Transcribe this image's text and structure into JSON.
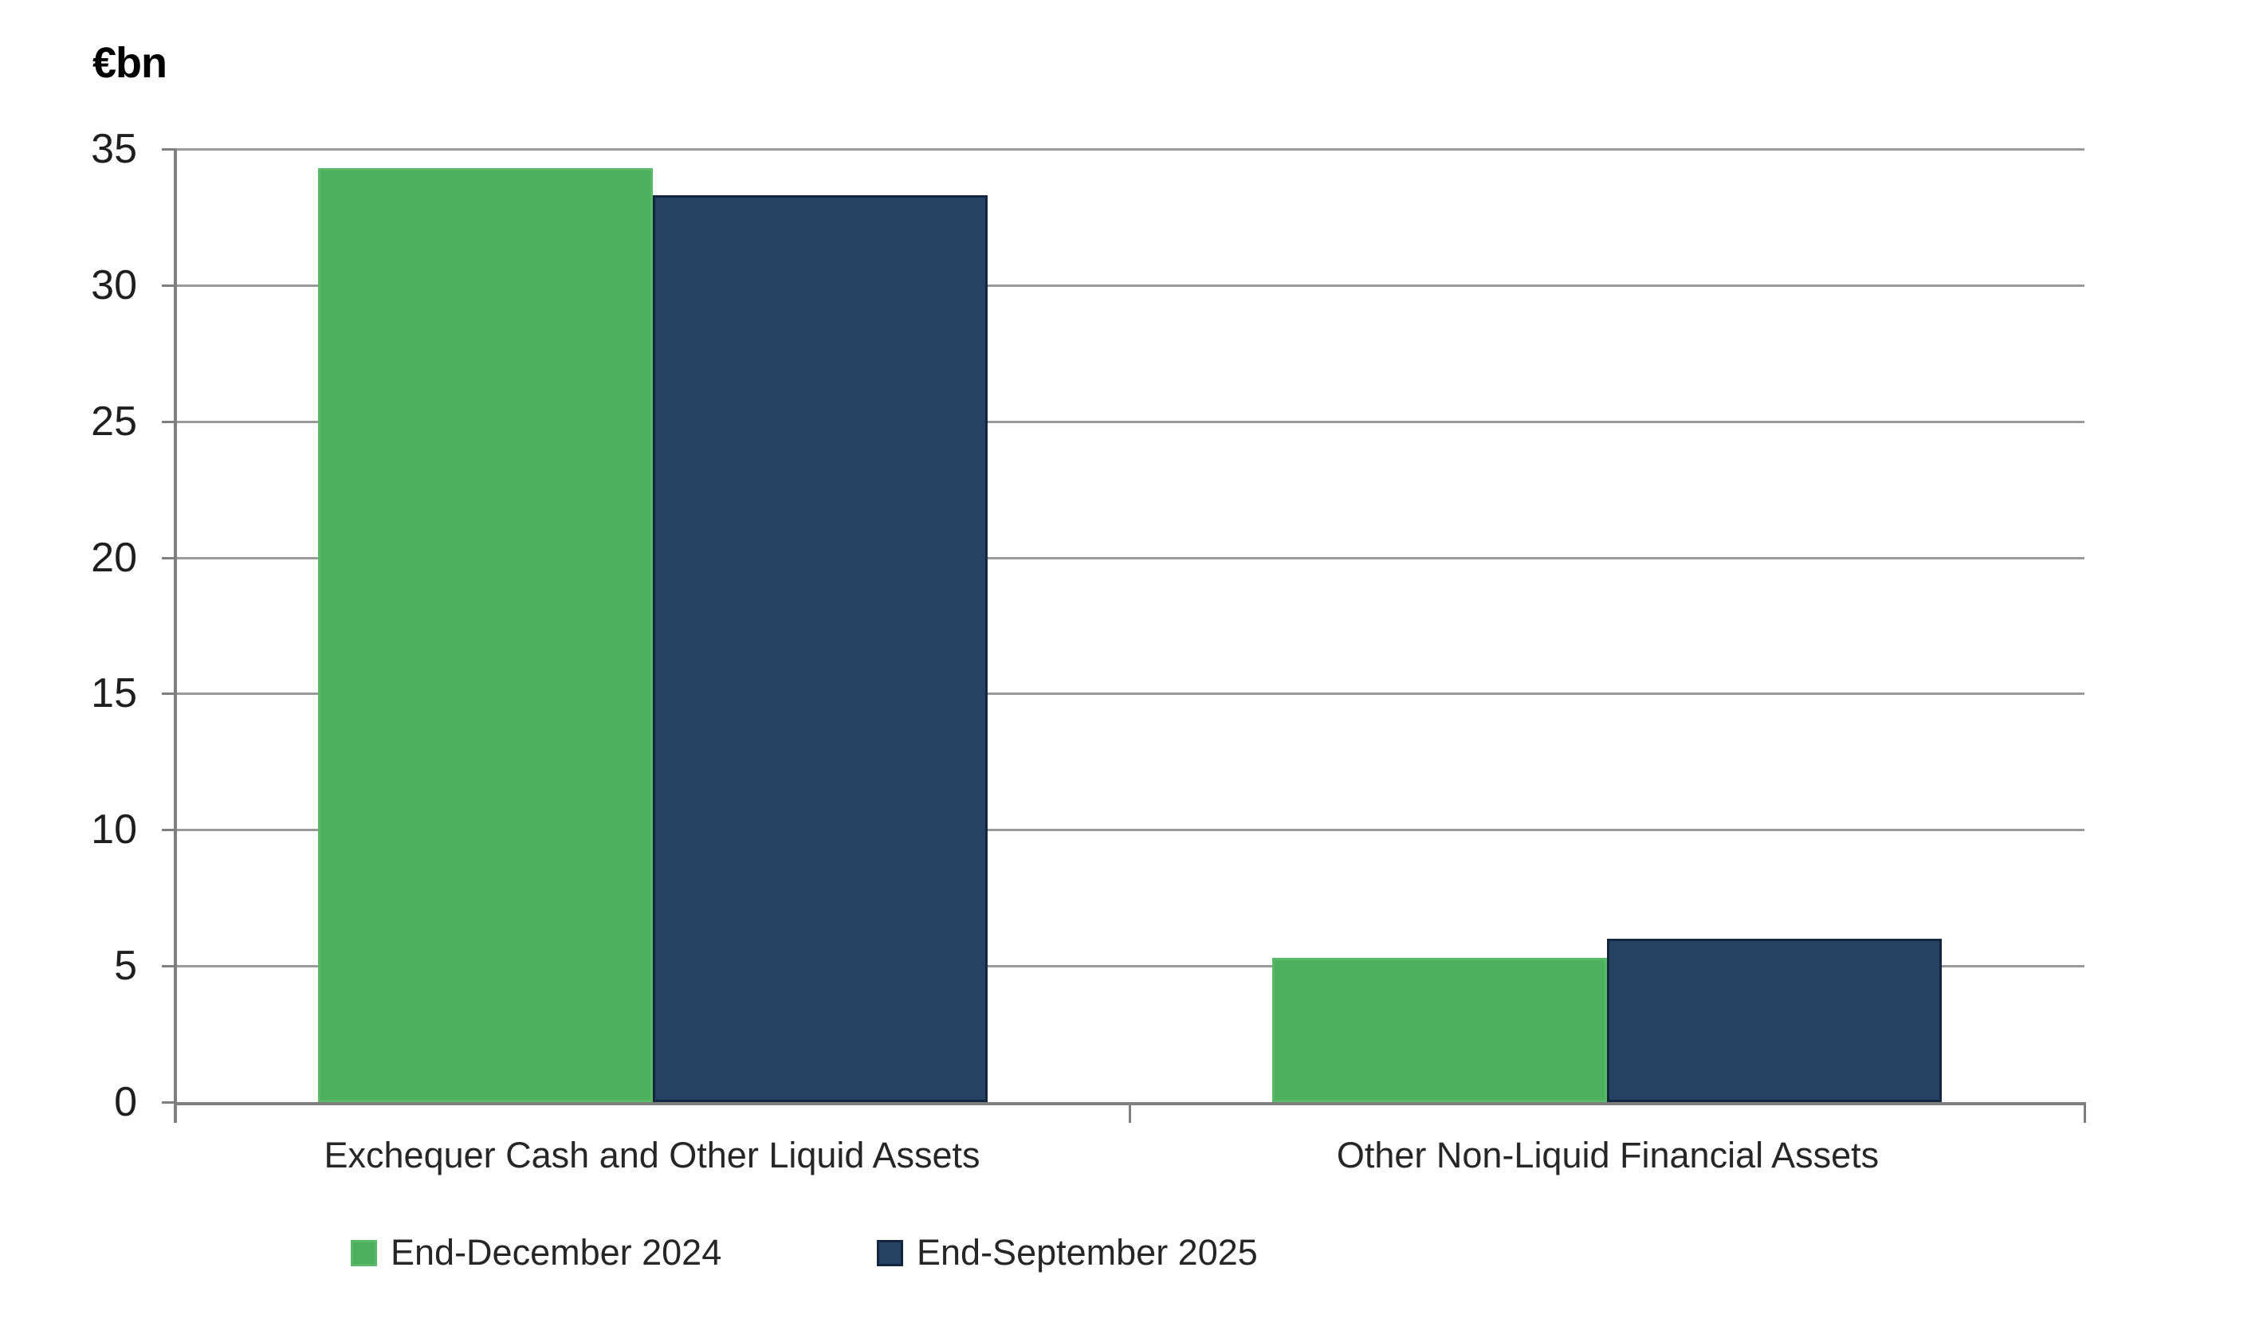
{
  "chart_data": {
    "type": "bar",
    "unit_label": "€bn",
    "categories": [
      "Exchequer Cash and Other Liquid Assets",
      "Other Non-Liquid Financial Assets"
    ],
    "series": [
      {
        "name": "End-December 2024",
        "color": "#4BAF5B",
        "border_color": "#58BA67",
        "values": [
          34.3,
          5.3
        ]
      },
      {
        "name": "End-September 2025",
        "color": "#264162",
        "border_color": "#13263F",
        "values": [
          33.3,
          6.0
        ]
      }
    ],
    "ylim": [
      0,
      35
    ],
    "yticks": [
      0,
      5,
      10,
      15,
      20,
      25,
      30,
      35
    ],
    "grid": true,
    "legend_position": "bottom",
    "background_color": "#FFFFFF",
    "gridline_color": "#9A9A9A",
    "axis_color": "#7F7F7F",
    "text_color": "#262626"
  }
}
